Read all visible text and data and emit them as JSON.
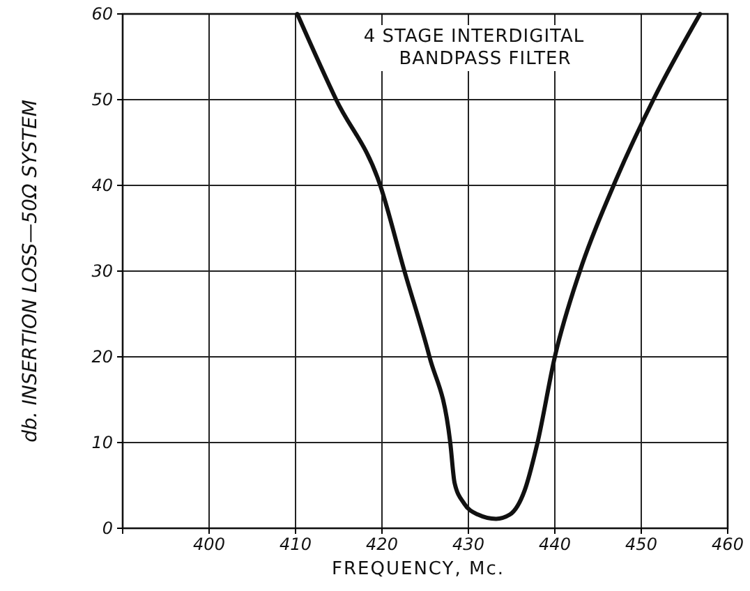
{
  "chart_data": {
    "type": "line",
    "title": "4 STAGE INTERDIGITAL\nBANDPASS FILTER",
    "xlabel": "FREQUENCY, Mc.",
    "ylabel": "db. INSERTION LOSS—50Ω SYSTEM",
    "x": [
      410.2,
      414.7,
      419.8,
      422.6,
      425.5,
      427.9,
      428.4,
      429.5,
      431.1,
      433.2,
      434.8,
      436.5,
      438,
      440,
      442.9,
      446.8,
      451.4,
      456.8
    ],
    "series": [
      {
        "color": "#111111",
        "values": [
          60,
          50,
          40,
          30,
          20,
          10,
          5.3,
          2.9,
          1.6,
          1.1,
          1.6,
          4.4,
          10,
          20,
          30,
          40,
          50,
          60
        ]
      }
    ],
    "xlim": [
      390,
      460
    ],
    "xticks": [
      400,
      410,
      420,
      430,
      440,
      450,
      460
    ],
    "ylim": [
      0,
      60
    ],
    "yticks": [
      0,
      10,
      20,
      30,
      40,
      50,
      60
    ],
    "grid": true,
    "marker": "none",
    "line_style": "solid"
  }
}
